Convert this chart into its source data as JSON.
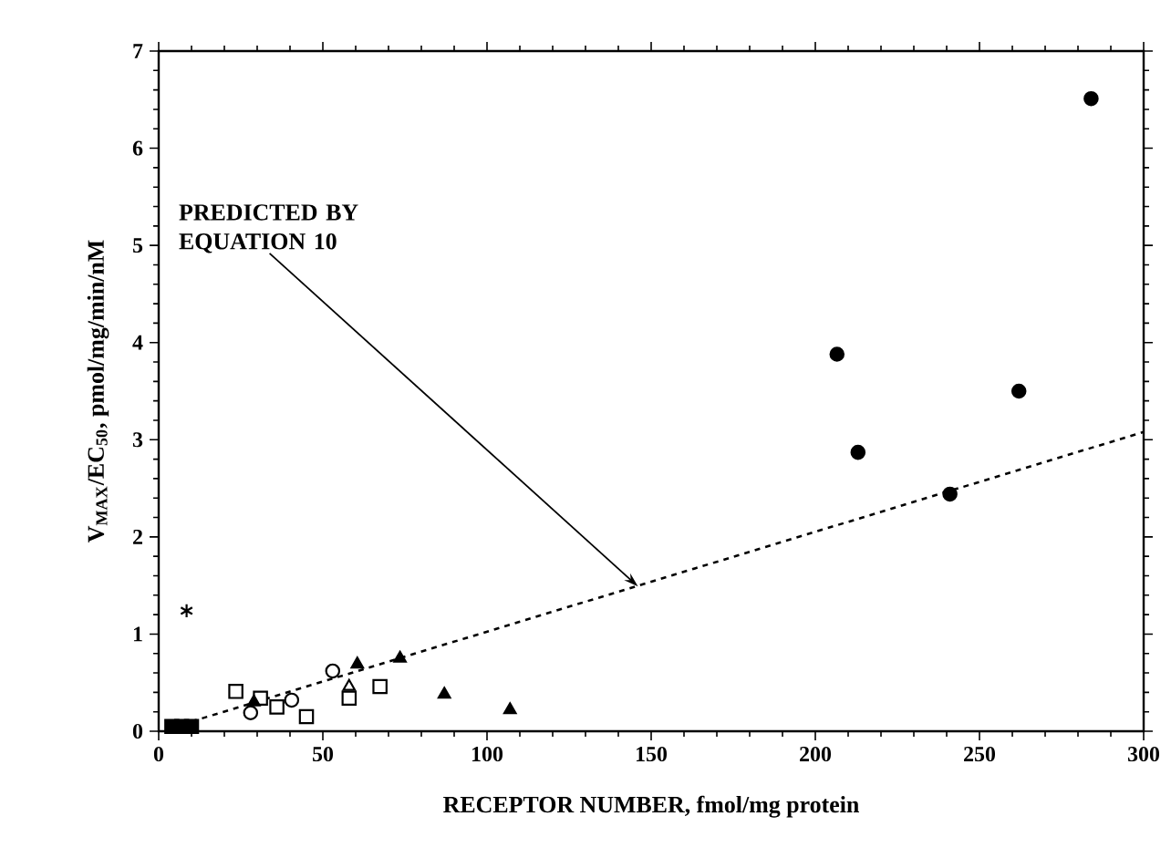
{
  "chart_data": {
    "type": "scatter",
    "xlabel": "RECEPTOR NUMBER, fmol/mg protein",
    "ylabel": "V$_{MAX}$/EC$_{50}$, pmol/mg/min/nM",
    "xlim": [
      0,
      300
    ],
    "ylim": [
      0,
      7
    ],
    "xticks": [
      0,
      50,
      100,
      150,
      200,
      250,
      300
    ],
    "yticks": [
      0,
      1,
      2,
      3,
      4,
      5,
      6,
      7
    ],
    "grid": false,
    "annotations": [
      {
        "text": "PREDICTED BY EQUATION 10",
        "x": 146,
        "y": 1.49
      }
    ],
    "series": [
      {
        "color": "#000000",
        "marker": "circle",
        "x": [
          206.6,
          213,
          241,
          262,
          284
        ],
        "values": [
          3.88,
          2.87,
          2.44,
          3.5,
          6.51
        ]
      },
      {
        "color": "#000000",
        "marker": "cross",
        "x": [
          8.5
        ],
        "values": [
          1.24
        ]
      },
      {
        "color": "#000000",
        "marker": "square",
        "x": [
          4,
          7,
          10
        ],
        "values": [
          0.05,
          0.05,
          0.05
        ]
      },
      {
        "color": "#ffffff",
        "marker": "square",
        "x": [
          23.5,
          31,
          36,
          45,
          58,
          67.4
        ],
        "values": [
          0.41,
          0.34,
          0.25,
          0.15,
          0.34,
          0.46
        ]
      },
      {
        "color": "#ffffff",
        "marker": "circle",
        "x": [
          28,
          40.5,
          53
        ],
        "values": [
          0.19,
          0.32,
          0.62
        ]
      },
      {
        "color": "#ffffff",
        "marker": "triangle",
        "x": [
          58
        ],
        "values": [
          0.46
        ]
      },
      {
        "color": "#000000",
        "marker": "triangle",
        "x": [
          29,
          60.5,
          73.5,
          87,
          107
        ],
        "values": [
          0.3,
          0.69,
          0.75,
          0.38,
          0.22
        ]
      },
      {
        "type": "line",
        "color": "#000000",
        "marker": "none",
        "line_style": "dashed",
        "x": [
          10,
          300
        ],
        "values": [
          0.1,
          3.08
        ]
      }
    ]
  }
}
